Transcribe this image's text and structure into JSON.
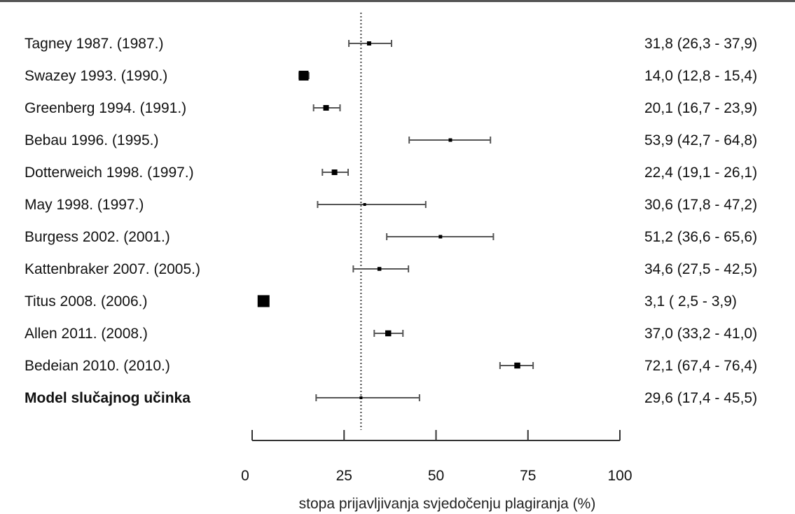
{
  "chart_data": {
    "type": "forest",
    "xlabel": "stopa prijavljivanja svjedočenju plagiranja (%)",
    "xlim": [
      0,
      100
    ],
    "ticks": [
      0,
      25,
      50,
      75,
      100
    ],
    "tick_labels": [
      "0",
      "25",
      "50",
      "75",
      "100"
    ],
    "reference_line": 29.6,
    "rows": [
      {
        "label": "Tagney 1987. (1987.)",
        "estimate": 31.8,
        "lower": 26.3,
        "upper": 37.9,
        "ci_text": "31,8 (26,3 - 37,9)",
        "weight": 1.0
      },
      {
        "label": "Swazey 1993. (1990.)",
        "estimate": 14.0,
        "lower": 12.8,
        "upper": 15.4,
        "ci_text": "14,0 (12,8 - 15,4)",
        "weight": 2.6
      },
      {
        "label": "Greenberg 1994. (1991.)",
        "estimate": 20.1,
        "lower": 16.7,
        "upper": 23.9,
        "ci_text": "20,1 (16,7 - 23,9)",
        "weight": 1.4
      },
      {
        "label": "Bebau 1996. (1995.)",
        "estimate": 53.9,
        "lower": 42.7,
        "upper": 64.8,
        "ci_text": "53,9 (42,7 - 64,8)",
        "weight": 0.8
      },
      {
        "label": "Dotterweich 1998. (1997.)",
        "estimate": 22.4,
        "lower": 19.1,
        "upper": 26.1,
        "ci_text": "22,4 (19,1 - 26,1)",
        "weight": 1.4
      },
      {
        "label": "May 1998. (1997.)",
        "estimate": 30.6,
        "lower": 17.8,
        "upper": 47.2,
        "ci_text": "30,6 (17,8 - 47,2)",
        "weight": 0.6
      },
      {
        "label": "Burgess 2002. (2001.)",
        "estimate": 51.2,
        "lower": 36.6,
        "upper": 65.6,
        "ci_text": "51,2 (36,6 - 65,6)",
        "weight": 0.8
      },
      {
        "label": "Kattenbraker 2007. (2005.)",
        "estimate": 34.6,
        "lower": 27.5,
        "upper": 42.5,
        "ci_text": "34,6 (27,5 - 42,5)",
        "weight": 0.9
      },
      {
        "label": "Titus 2008. (2006.)",
        "estimate": 3.1,
        "lower": 2.5,
        "upper": 3.9,
        "ci_text": "3,1 ( 2,5 - 3,9)",
        "weight": 3.2
      },
      {
        "label": "Allen 2011. (2008.)",
        "estimate": 37.0,
        "lower": 33.2,
        "upper": 41.0,
        "ci_text": "37,0 (33,2 - 41,0)",
        "weight": 1.5
      },
      {
        "label": "Bedeian 2010. (2010.)",
        "estimate": 72.1,
        "lower": 67.4,
        "upper": 76.4,
        "ci_text": "72,1 (67,4 - 76,4)",
        "weight": 1.5
      },
      {
        "label": "Model slučajnog učinka",
        "estimate": 29.6,
        "lower": 17.4,
        "upper": 45.5,
        "ci_text": "29,6 (17,4 - 45,5)",
        "weight": 0.6,
        "bold": true
      }
    ]
  }
}
